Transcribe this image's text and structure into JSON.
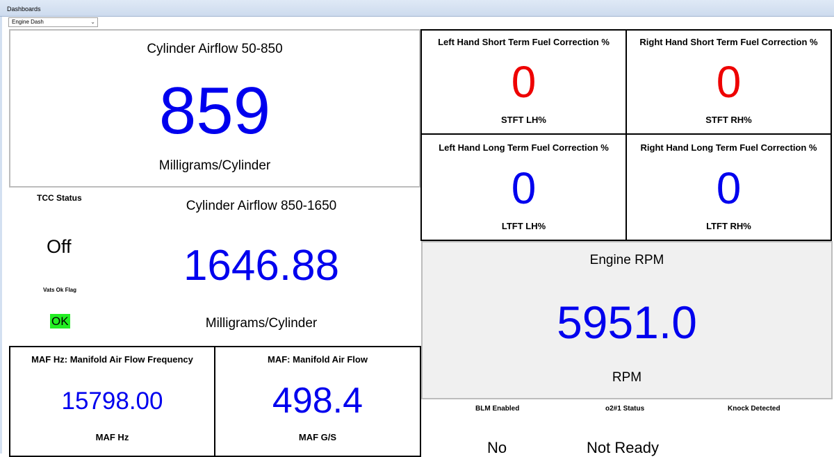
{
  "window": {
    "title": "Dashboards"
  },
  "dashboard_select": {
    "value": "Engine Dash"
  },
  "icons": {
    "dropdown": "chevron-down-icon"
  },
  "colors": {
    "value_blue": "#0000ee",
    "value_red": "#ee0000",
    "ok_green": "#22ee22",
    "rpm_panel_bg": "#f0f0f0"
  },
  "gauges": {
    "airflow_low": {
      "title": "Cylinder Airflow 50-850",
      "value": "859",
      "unit": "Milligrams/Cylinder"
    },
    "airflow_high": {
      "title": "Cylinder Airflow 850-1650",
      "value": "1646.88",
      "unit": "Milligrams/Cylinder"
    },
    "stft_lh": {
      "title": "Left Hand Short Term Fuel Correction %",
      "value": "0",
      "unit": "STFT LH%"
    },
    "stft_rh": {
      "title": "Right Hand Short Term Fuel Correction %",
      "value": "0",
      "unit": "STFT RH%"
    },
    "ltft_lh": {
      "title": "Left Hand Long Term Fuel Correction %",
      "value": "0",
      "unit": "LTFT LH%"
    },
    "ltft_rh": {
      "title": "Right Hand Long Term Fuel Correction %",
      "value": "0",
      "unit": "LTFT RH%"
    },
    "rpm": {
      "title": "Engine RPM",
      "value": "5951.0",
      "unit": "RPM"
    },
    "maf_hz": {
      "title": "MAF Hz: Manifold Air Flow Frequency",
      "value": "15798.00",
      "unit": "MAF Hz"
    },
    "maf": {
      "title": "MAF: Manifold Air Flow",
      "value": "498.4",
      "unit": "MAF G/S"
    }
  },
  "status": {
    "tcc": {
      "label": "TCC Status",
      "value": "Off"
    },
    "vats": {
      "label": "Vats Ok Flag",
      "value": "OK"
    },
    "blm": {
      "label": "BLM Enabled",
      "value": "No"
    },
    "o2": {
      "label": "o2#1 Status",
      "value": "Not Ready"
    },
    "knock": {
      "label": "Knock Detected"
    }
  }
}
